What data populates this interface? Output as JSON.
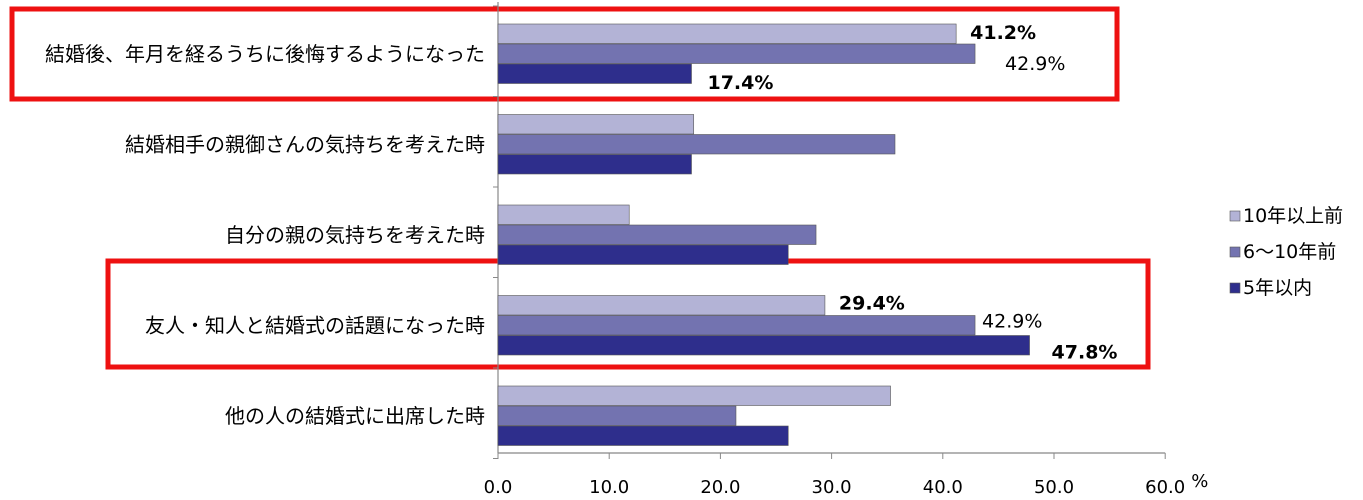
{
  "chart_data": {
    "type": "bar",
    "orientation": "horizontal",
    "categories": [
      "結婚後、年月を経るうちに後悔するようになった",
      "結婚相手の親御さんの気持ちを考えた時",
      "自分の親の気持ちを考えた時",
      "友人・知人と結婚式の話題になった時",
      "他の人の結婚式に出席した時"
    ],
    "series": [
      {
        "name": "10年以上前",
        "color": "#b3b3d6",
        "values": [
          41.2,
          17.6,
          11.8,
          29.4,
          35.3
        ]
      },
      {
        "name": "6〜10年前",
        "color": "#7373b0",
        "values": [
          42.9,
          35.7,
          28.6,
          42.9,
          21.4
        ]
      },
      {
        "name": "5年以内",
        "color": "#2e2e8c",
        "values": [
          17.4,
          17.4,
          26.1,
          47.8,
          26.1
        ]
      }
    ],
    "data_labels": [
      {
        "category": 0,
        "series": 0,
        "text": "41.2%",
        "bold": true
      },
      {
        "category": 0,
        "series": 1,
        "text": "42.9%",
        "bold": false
      },
      {
        "category": 0,
        "series": 2,
        "text": "17.4%",
        "bold": true
      },
      {
        "category": 3,
        "series": 0,
        "text": "29.4%",
        "bold": true
      },
      {
        "category": 3,
        "series": 1,
        "text": "42.9%",
        "bold": false
      },
      {
        "category": 3,
        "series": 2,
        "text": "47.8%",
        "bold": true
      }
    ],
    "highlighted_categories": [
      0,
      3
    ],
    "highlight_color": "#ee1111",
    "x_ticks": [
      "0.0",
      "10.0",
      "20.0",
      "30.0",
      "40.0",
      "50.0",
      "60.0"
    ],
    "x_unit": "%",
    "xlim": [
      0,
      60
    ],
    "grid": false,
    "legend_position": "right"
  }
}
